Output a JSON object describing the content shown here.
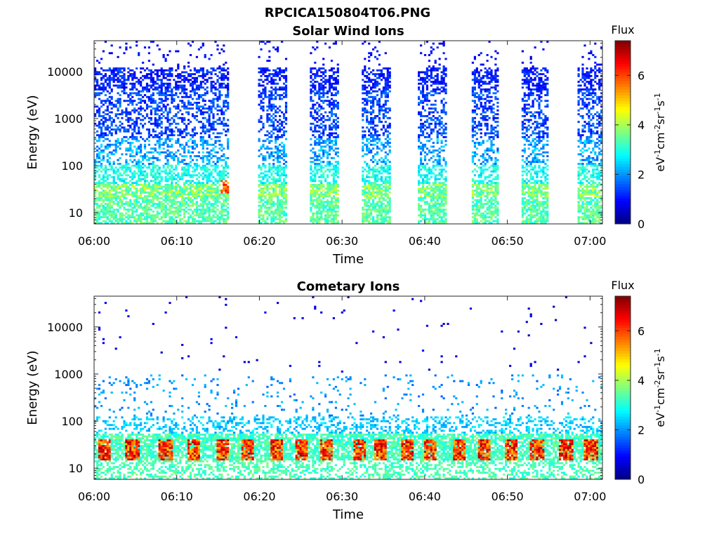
{
  "figure_title": "RPCICA150804T06.PNG",
  "chart_data": [
    {
      "type": "heatmap",
      "title": "Solar Wind Ions",
      "xlabel": "Time",
      "ylabel": "Energy (eV)",
      "x_ticks": [
        "06:00",
        "06:10",
        "06:20",
        "06:30",
        "06:40",
        "06:50",
        "07:00"
      ],
      "xlim_minutes": [
        0,
        61.5
      ],
      "y_scale": "log",
      "y_ticks": [
        10,
        100,
        1000,
        10000
      ],
      "y_tick_labels": [
        "10",
        "100",
        "1000",
        "10000"
      ],
      "ylim": [
        5.8,
        45000
      ],
      "colorbar": {
        "title": "Flux",
        "label": "eV-1cm-2sr-1s-1",
        "range": [
          0,
          7.4
        ],
        "ticks": [
          "0",
          "2",
          "4",
          "6"
        ],
        "colormap": "jet"
      },
      "active_minute_ranges": [
        [
          0,
          16.3
        ],
        [
          19.8,
          23.2
        ],
        [
          26,
          29.5
        ],
        [
          32.3,
          35.8
        ],
        [
          39,
          42.5
        ],
        [
          45.5,
          48.7
        ],
        [
          51.5,
          54.8
        ],
        [
          58.3,
          61.5
        ]
      ],
      "peak": {
        "minute": 15.8,
        "energy_eV": 35,
        "flux": 6.5
      },
      "grid": false
    },
    {
      "type": "heatmap",
      "title": "Cometary Ions",
      "xlabel": "Time",
      "ylabel": "Energy (eV)",
      "x_ticks": [
        "06:00",
        "06:10",
        "06:20",
        "06:30",
        "06:40",
        "06:50",
        "07:00"
      ],
      "xlim_minutes": [
        0,
        61.5
      ],
      "y_scale": "log",
      "y_ticks": [
        10,
        100,
        1000,
        10000
      ],
      "y_tick_labels": [
        "10",
        "100",
        "1000",
        "10000"
      ],
      "ylim": [
        5.8,
        45000
      ],
      "colorbar": {
        "title": "Flux",
        "label": "eV-1cm-2sr-1s-1",
        "range": [
          0,
          7.4
        ],
        "ticks": [
          "0",
          "2",
          "4",
          "6"
        ],
        "colormap": "jet"
      },
      "hot_spot_minutes": [
        1.2,
        4.5,
        8.5,
        12,
        15.5,
        18.5,
        22,
        25,
        28,
        32,
        34.5,
        37.7,
        40.5,
        44,
        47,
        50.3,
        53.5,
        57,
        60
      ],
      "hot_spot_energy_eV": [
        15,
        40
      ],
      "grid": false
    }
  ]
}
